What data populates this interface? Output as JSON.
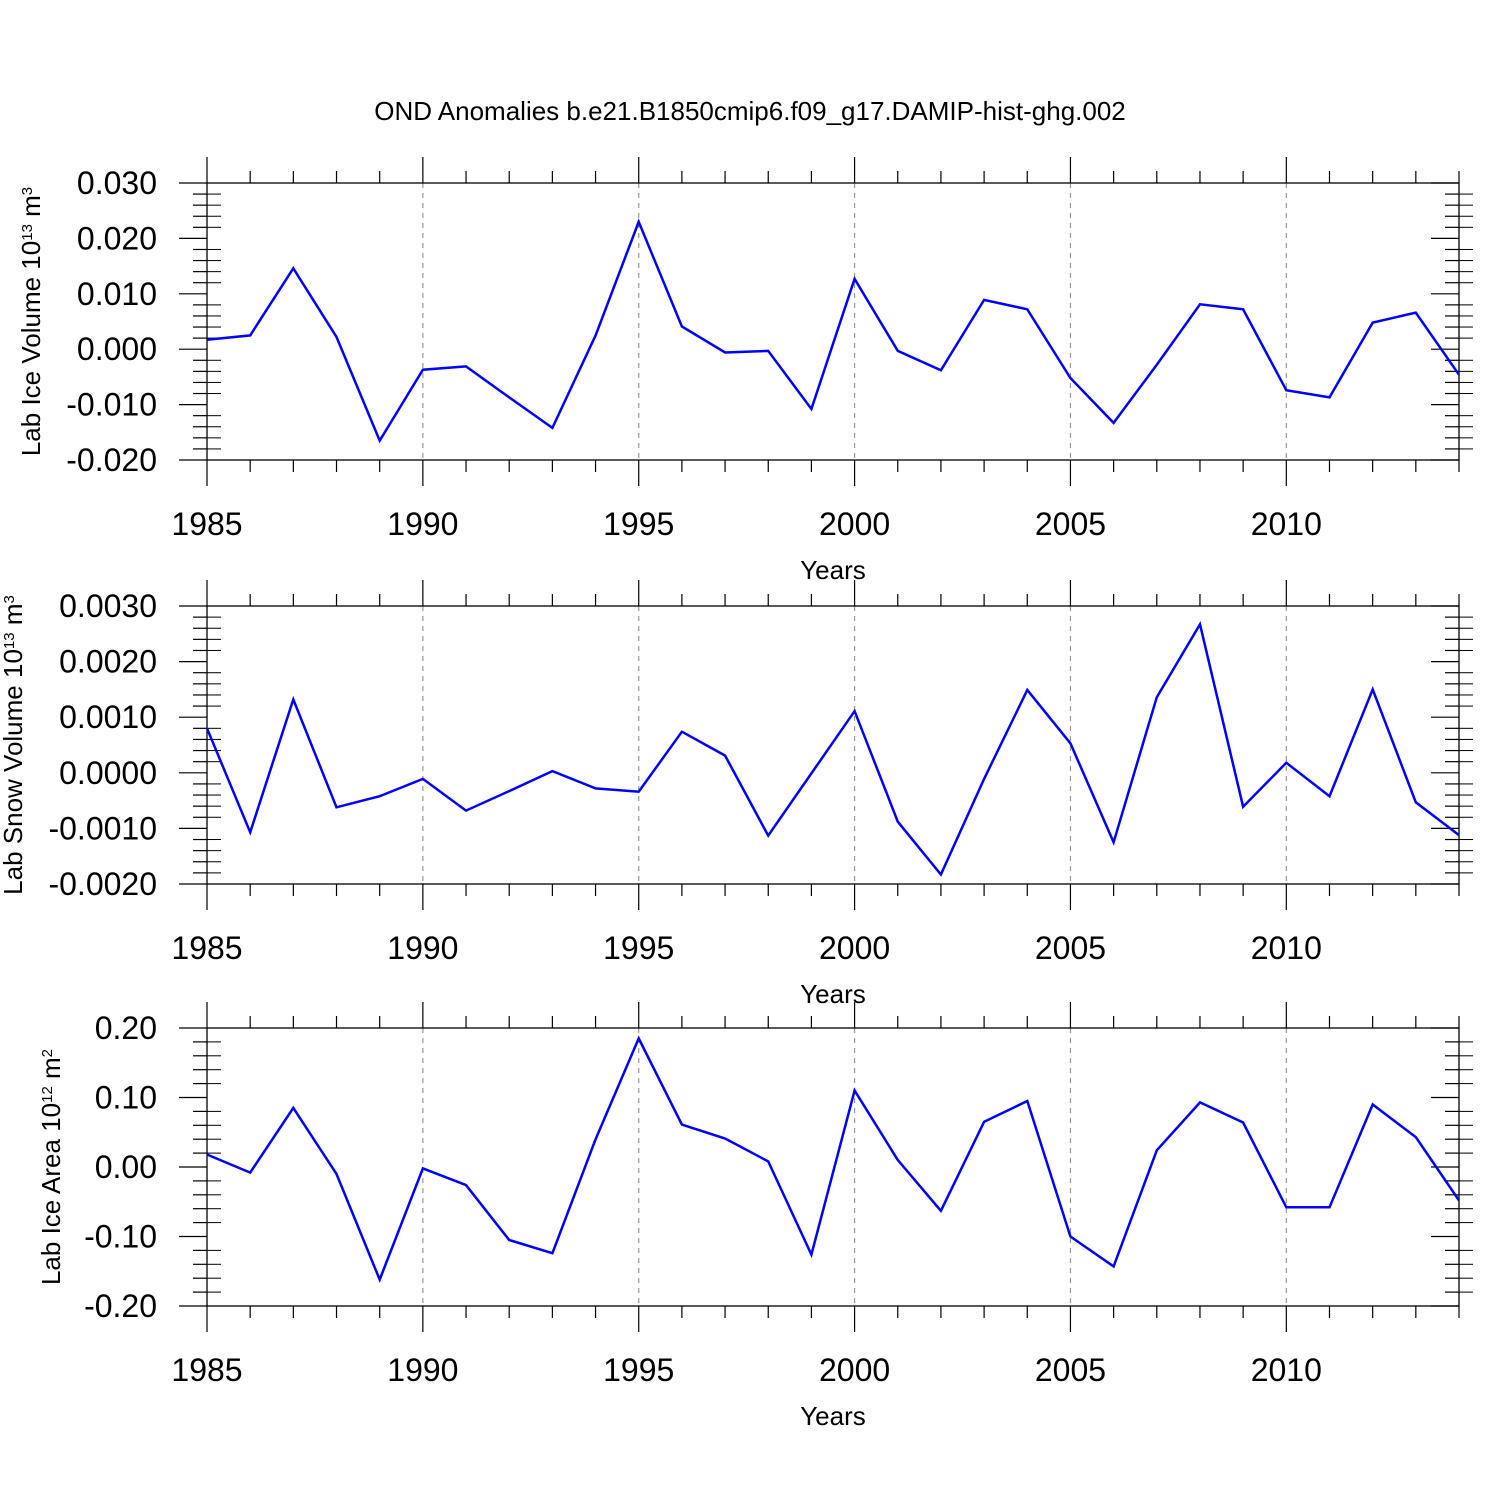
{
  "figure": {
    "title": "OND Anomalies b.e21.B1850cmip6.f09_g17.DAMIP-hist-ghg.002",
    "line_color": "#0000ff",
    "grid_color": "#999999"
  },
  "chart_data": [
    {
      "type": "line",
      "title": "",
      "xlabel": "Years",
      "ylabel_base": "Lab Ice Volume 10",
      "ylabel_exp": "13",
      "ylabel_unit": "m",
      "ylabel_unit_exp": "3",
      "xlim": [
        1985,
        2014
      ],
      "ylim": [
        -0.02,
        0.03
      ],
      "x_ticks": [
        1985,
        1990,
        1995,
        2000,
        2005,
        2010
      ],
      "x_tick_labels": [
        "1985",
        "1990",
        "1995",
        "2000",
        "2005",
        "2010"
      ],
      "y_ticks": [
        -0.02,
        -0.01,
        0.0,
        0.01,
        0.02,
        0.03
      ],
      "y_tick_labels": [
        "-0.020",
        "-0.010",
        "0.000",
        "0.010",
        "0.020",
        "0.030"
      ],
      "vgrid": [
        1990,
        1995,
        2000,
        2005,
        2010
      ],
      "x": [
        1985,
        1986,
        1987,
        1988,
        1989,
        1990,
        1991,
        1992,
        1993,
        1994,
        1995,
        1996,
        1997,
        1998,
        1999,
        2000,
        2001,
        2002,
        2003,
        2004,
        2005,
        2006,
        2007,
        2008,
        2009,
        2010,
        2011,
        2012,
        2013,
        2014
      ],
      "values": [
        0.0017,
        0.0025,
        0.0146,
        0.0022,
        -0.0165,
        -0.0037,
        -0.0031,
        -0.0087,
        -0.0142,
        0.0025,
        0.023,
        0.0041,
        -0.0006,
        -0.0003,
        -0.0108,
        0.0127,
        -0.0003,
        -0.0038,
        0.0089,
        0.0072,
        -0.0052,
        -0.0133,
        -0.0028,
        0.0081,
        0.0072,
        -0.0074,
        -0.0087,
        0.0048,
        0.0066,
        -0.0046
      ]
    },
    {
      "type": "line",
      "title": "",
      "xlabel": "Years",
      "ylabel_base": "Lab Snow Volume 10",
      "ylabel_exp": "13",
      "ylabel_unit": "m",
      "ylabel_unit_exp": "3",
      "xlim": [
        1985,
        2014
      ],
      "ylim": [
        -0.002,
        0.003
      ],
      "x_ticks": [
        1985,
        1990,
        1995,
        2000,
        2005,
        2010
      ],
      "x_tick_labels": [
        "1985",
        "1990",
        "1995",
        "2000",
        "2005",
        "2010"
      ],
      "y_ticks": [
        -0.002,
        -0.001,
        0.0,
        0.001,
        0.002,
        0.003
      ],
      "y_tick_labels": [
        "-0.0020",
        "-0.0010",
        "0.0000",
        "0.0010",
        "0.0020",
        "0.0030"
      ],
      "vgrid": [
        1990,
        1995,
        2000,
        2005,
        2010
      ],
      "x": [
        1985,
        1986,
        1987,
        1988,
        1989,
        1990,
        1991,
        1992,
        1993,
        1994,
        1995,
        1996,
        1997,
        1998,
        1999,
        2000,
        2001,
        2002,
        2003,
        2004,
        2005,
        2006,
        2007,
        2008,
        2009,
        2010,
        2011,
        2012,
        2013,
        2014
      ],
      "values": [
        0.0008,
        -0.00107,
        0.00132,
        -0.00062,
        -0.00042,
        -0.00011,
        -0.00068,
        -0.00033,
        3e-05,
        -0.00028,
        -0.00034,
        0.00074,
        0.00031,
        -0.00113,
        -1e-05,
        0.00111,
        -0.00088,
        -0.00183,
        -0.00011,
        0.00149,
        0.00053,
        -0.00125,
        0.00136,
        0.00267,
        -0.00061,
        0.00018,
        -0.00042,
        0.0015,
        -0.00053,
        -0.00112
      ]
    },
    {
      "type": "line",
      "title": "",
      "xlabel": "Years",
      "ylabel_base": "Lab Ice Area 10",
      "ylabel_exp": "12",
      "ylabel_unit": "m",
      "ylabel_unit_exp": "2",
      "xlim": [
        1985,
        2014
      ],
      "ylim": [
        -0.2,
        0.2
      ],
      "x_ticks": [
        1985,
        1990,
        1995,
        2000,
        2005,
        2010
      ],
      "x_tick_labels": [
        "1985",
        "1990",
        "1995",
        "2000",
        "2005",
        "2010"
      ],
      "y_ticks": [
        -0.2,
        -0.1,
        0.0,
        0.1,
        0.2
      ],
      "y_tick_labels": [
        "-0.20",
        "-0.10",
        "0.00",
        "0.10",
        "0.20"
      ],
      "vgrid": [
        1990,
        1995,
        2000,
        2005,
        2010
      ],
      "x": [
        1985,
        1986,
        1987,
        1988,
        1989,
        1990,
        1991,
        1992,
        1993,
        1994,
        1995,
        1996,
        1997,
        1998,
        1999,
        2000,
        2001,
        2002,
        2003,
        2004,
        2005,
        2006,
        2007,
        2008,
        2009,
        2010,
        2011,
        2012,
        2013,
        2014
      ],
      "values": [
        0.018,
        -0.008,
        0.085,
        -0.01,
        -0.162,
        -0.002,
        -0.026,
        -0.105,
        -0.124,
        0.04,
        0.185,
        0.061,
        0.041,
        0.008,
        -0.126,
        0.11,
        0.01,
        -0.063,
        0.065,
        0.095,
        -0.1,
        -0.143,
        0.024,
        0.093,
        0.064,
        -0.058,
        -0.058,
        0.09,
        0.043,
        -0.048
      ]
    }
  ]
}
